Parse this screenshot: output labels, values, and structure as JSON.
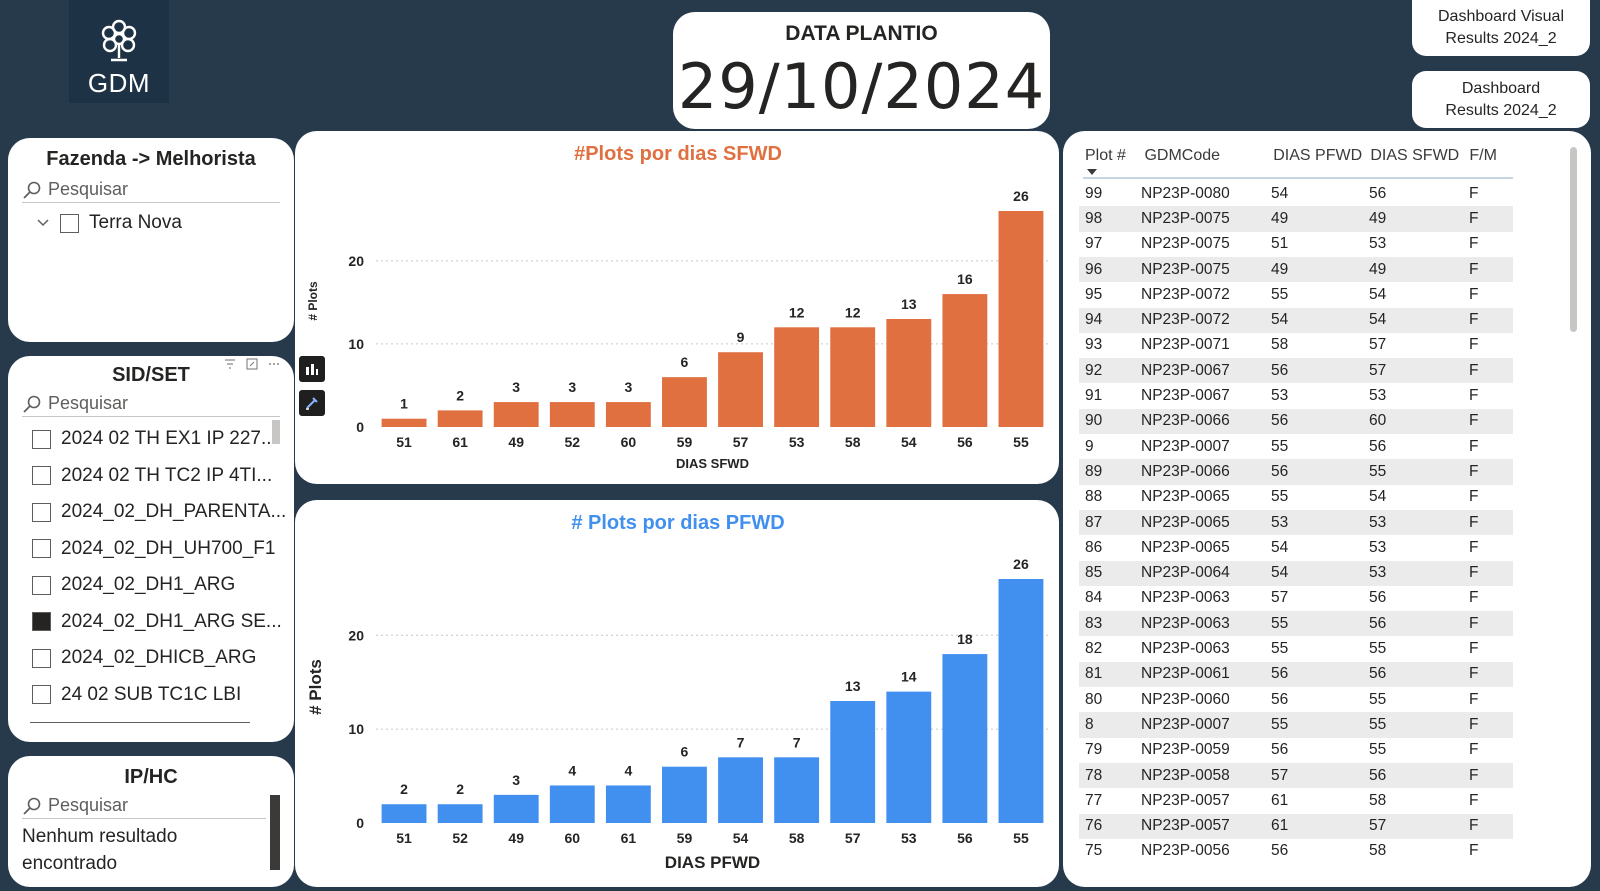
{
  "logo": {
    "text": "GDM"
  },
  "date_card": {
    "label": "DATA PLANTIO",
    "value": "29/10/2024"
  },
  "nav": {
    "visual_results": "Dashboard Visual Results 2024_2",
    "results": "Dashboard Results 2024_2"
  },
  "slicer_fazenda": {
    "title": "Fazenda -> Melhorista",
    "placeholder": "Pesquisar",
    "items": [
      {
        "label": "Terra Nova",
        "checked": false
      }
    ]
  },
  "slicer_sid": {
    "title": "SID/SET",
    "placeholder": "Pesquisar",
    "items": [
      {
        "label": "2024 02 TH EX1 IP 227...",
        "checked": false
      },
      {
        "label": "2024 02 TH TC2 IP 4TI...",
        "checked": false
      },
      {
        "label": "2024_02_DH_PARENTA...",
        "checked": false
      },
      {
        "label": "2024_02_DH_UH700_F1",
        "checked": false
      },
      {
        "label": "2024_02_DH1_ARG",
        "checked": false
      },
      {
        "label": "2024_02_DH1_ARG SE...",
        "checked": true
      },
      {
        "label": "2024_02_DHICB_ARG",
        "checked": false
      },
      {
        "label": "24 02 SUB TC1C LBI",
        "checked": false
      }
    ]
  },
  "slicer_ip": {
    "title": "IP/HC",
    "placeholder": "Pesquisar",
    "empty_text": "Nenhum resultado encontrado"
  },
  "chart_data": [
    {
      "type": "bar",
      "title": "#Plots por dias SFWD",
      "xlabel": "DIAS SFWD",
      "ylabel": "# Plots",
      "categories": [
        "51",
        "61",
        "49",
        "52",
        "60",
        "59",
        "57",
        "53",
        "58",
        "54",
        "56",
        "55"
      ],
      "values": [
        1,
        2,
        3,
        3,
        3,
        6,
        9,
        12,
        12,
        13,
        16,
        26
      ],
      "yticks": [
        0,
        10,
        20
      ],
      "ylim": [
        0,
        26
      ],
      "color": "#e07040",
      "grid": true
    },
    {
      "type": "bar",
      "title": "# Plots por dias PFWD",
      "xlabel": "DIAS PFWD",
      "ylabel": "# Plots",
      "categories": [
        "51",
        "52",
        "49",
        "60",
        "61",
        "59",
        "54",
        "58",
        "57",
        "53",
        "56",
        "55"
      ],
      "values": [
        2,
        2,
        3,
        4,
        4,
        6,
        7,
        7,
        13,
        14,
        18,
        26
      ],
      "yticks": [
        0,
        10,
        20
      ],
      "ylim": [
        0,
        26
      ],
      "color": "#4190f0",
      "grid": true
    }
  ],
  "table": {
    "columns": [
      "Plot #",
      "GDMCode",
      "DIAS PFWD",
      "DIAS SFWD",
      "F/M"
    ],
    "rows": [
      [
        "99",
        "NP23P-0080",
        "54",
        "56",
        "F"
      ],
      [
        "98",
        "NP23P-0075",
        "49",
        "49",
        "F"
      ],
      [
        "97",
        "NP23P-0075",
        "51",
        "53",
        "F"
      ],
      [
        "96",
        "NP23P-0075",
        "49",
        "49",
        "F"
      ],
      [
        "95",
        "NP23P-0072",
        "55",
        "54",
        "F"
      ],
      [
        "94",
        "NP23P-0072",
        "54",
        "54",
        "F"
      ],
      [
        "93",
        "NP23P-0071",
        "58",
        "57",
        "F"
      ],
      [
        "92",
        "NP23P-0067",
        "56",
        "57",
        "F"
      ],
      [
        "91",
        "NP23P-0067",
        "53",
        "53",
        "F"
      ],
      [
        "90",
        "NP23P-0066",
        "56",
        "60",
        "F"
      ],
      [
        "9",
        "NP23P-0007",
        "55",
        "56",
        "F"
      ],
      [
        "89",
        "NP23P-0066",
        "56",
        "55",
        "F"
      ],
      [
        "88",
        "NP23P-0065",
        "55",
        "54",
        "F"
      ],
      [
        "87",
        "NP23P-0065",
        "53",
        "53",
        "F"
      ],
      [
        "86",
        "NP23P-0065",
        "54",
        "53",
        "F"
      ],
      [
        "85",
        "NP23P-0064",
        "54",
        "53",
        "F"
      ],
      [
        "84",
        "NP23P-0063",
        "57",
        "56",
        "F"
      ],
      [
        "83",
        "NP23P-0063",
        "55",
        "56",
        "F"
      ],
      [
        "82",
        "NP23P-0063",
        "55",
        "55",
        "F"
      ],
      [
        "81",
        "NP23P-0061",
        "56",
        "56",
        "F"
      ],
      [
        "80",
        "NP23P-0060",
        "56",
        "55",
        "F"
      ],
      [
        "8",
        "NP23P-0007",
        "55",
        "55",
        "F"
      ],
      [
        "79",
        "NP23P-0059",
        "56",
        "55",
        "F"
      ],
      [
        "78",
        "NP23P-0058",
        "57",
        "56",
        "F"
      ],
      [
        "77",
        "NP23P-0057",
        "61",
        "58",
        "F"
      ],
      [
        "76",
        "NP23P-0057",
        "61",
        "57",
        "F"
      ],
      [
        "75",
        "NP23P-0056",
        "56",
        "58",
        "F"
      ]
    ]
  },
  "icons": {
    "logo": "gdm-plant-icon",
    "search": "search-icon",
    "expand": "chevron-down-icon",
    "sort": "sort-desc-icon",
    "filter": "filter-icon",
    "focus": "focus-mode-icon",
    "more": "more-options-icon",
    "chart_type": "bar-chart-icon",
    "format": "paintbrush-icon"
  }
}
